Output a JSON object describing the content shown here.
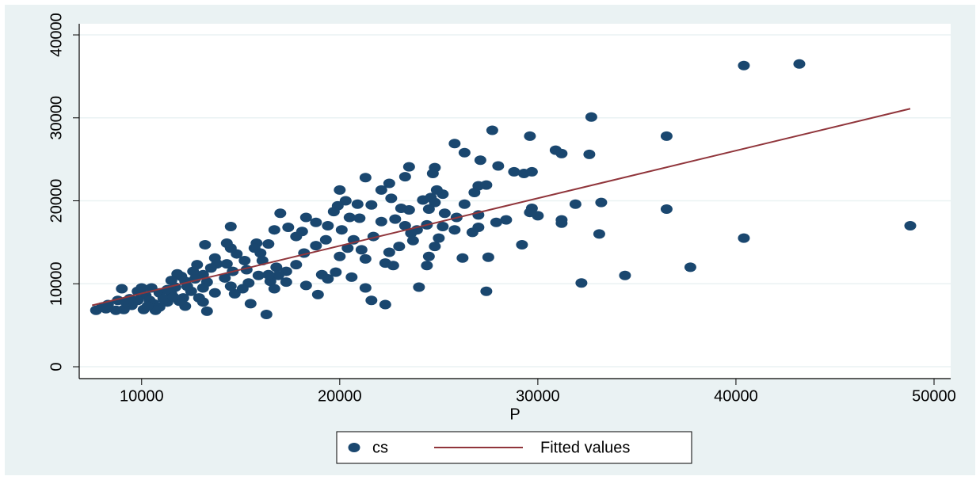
{
  "chart_data": {
    "type": "scatter",
    "x_label": "P",
    "xlim": [
      6850,
      50840
    ],
    "ylim": [
      -1430,
      41340
    ],
    "xticks": [
      10000,
      20000,
      30000,
      40000,
      50000
    ],
    "yticks": [
      0,
      10000,
      20000,
      30000,
      40000
    ],
    "grid": true,
    "legend": "bottom",
    "series": [
      {
        "name": "cs",
        "type": "scatter",
        "color": "#1a476f",
        "x": [
          40400,
          43200,
          32700,
          27700,
          29600,
          36500,
          25800,
          26300,
          27100,
          28000,
          30900,
          31200,
          32600,
          28800,
          29300,
          29700,
          23500,
          24800,
          24700,
          21300,
          22500,
          23300,
          48800,
          40400,
          36500,
          37700,
          34400,
          32200,
          33200,
          31900,
          31200,
          31200,
          30000,
          29600,
          29700,
          28400,
          27900,
          33100,
          29200,
          27500,
          26200,
          27400,
          26800,
          27000,
          27400,
          26300,
          25200,
          25300,
          27000,
          27000,
          24200,
          24600,
          24900,
          24800,
          24500,
          23100,
          23500,
          22600,
          22100,
          21600,
          20900,
          20300,
          20000,
          19900,
          19700,
          17000,
          18300,
          18800,
          19400,
          20100,
          21000,
          22100,
          22800,
          23300,
          23900,
          24400,
          25200,
          25800,
          26700,
          25000,
          24800,
          24500,
          24400,
          24000,
          23700,
          23000,
          22500,
          22300,
          22700,
          21300,
          21100,
          20700,
          20400,
          20000,
          19800,
          19100,
          19400,
          20600,
          21300,
          21600,
          22300,
          18900,
          18300,
          17800,
          18200,
          18800,
          19300,
          17800,
          17400,
          16700,
          16400,
          16000,
          16100,
          16800,
          17300,
          16900,
          16500,
          16700,
          17300,
          15900,
          15400,
          15100,
          15500,
          16300,
          14700,
          14500,
          14200,
          14600,
          14300,
          14800,
          14500,
          14300,
          14500,
          15800,
          15700,
          15200,
          13700,
          13200,
          13500,
          13100,
          13300,
          13100,
          13700,
          13100,
          13300,
          12900,
          12500,
          12200,
          12000,
          12600,
          12800,
          11800,
          11500,
          11700,
          11500,
          12100,
          11300,
          12200,
          10900,
          10500,
          10000,
          10200,
          9800,
          9500,
          9100,
          8700,
          8200,
          7700,
          8300,
          8800,
          9200,
          9000,
          9800,
          10400,
          10600,
          10900,
          11100,
          10100,
          10700,
          11300,
          11900,
          12300,
          13800,
          15300,
          16400,
          18100,
          20500,
          21700,
          23600,
          25900,
          8000,
          9400,
          10300,
          11600,
          12700
        ],
        "values": [
          36300,
          36500,
          30100,
          28500,
          27800,
          27800,
          26900,
          25800,
          24900,
          24200,
          26100,
          25700,
          25600,
          23500,
          23300,
          23500,
          24100,
          24000,
          23300,
          22800,
          22100,
          22900,
          17000,
          15500,
          19000,
          12000,
          11000,
          10100,
          19800,
          19600,
          17700,
          17300,
          18200,
          18600,
          19100,
          17700,
          17400,
          16000,
          14700,
          13200,
          13100,
          9100,
          21000,
          21800,
          21900,
          19600,
          20800,
          18500,
          18300,
          16800,
          20100,
          20400,
          21300,
          19800,
          19000,
          19100,
          18900,
          20300,
          21300,
          19500,
          19600,
          20000,
          21300,
          19400,
          18700,
          18500,
          18000,
          17400,
          17000,
          16500,
          17900,
          17500,
          17800,
          17000,
          16500,
          17100,
          16900,
          16500,
          16200,
          15500,
          14500,
          13300,
          12200,
          9600,
          15200,
          14500,
          13800,
          12500,
          12200,
          13000,
          14100,
          15300,
          14300,
          13300,
          11400,
          11100,
          10600,
          10800,
          9500,
          8000,
          7500,
          8700,
          9800,
          12300,
          13700,
          14600,
          15300,
          15700,
          16800,
          16500,
          14800,
          13700,
          12800,
          12000,
          11500,
          11000,
          10300,
          9400,
          10200,
          11000,
          10100,
          9400,
          7600,
          6300,
          8800,
          9700,
          10700,
          11500,
          12400,
          13600,
          14300,
          14900,
          16900,
          14900,
          14300,
          12800,
          13100,
          14700,
          11900,
          11100,
          10200,
          9500,
          8900,
          7800,
          6700,
          8300,
          9100,
          10300,
          10900,
          11500,
          12300,
          11200,
          10400,
          9600,
          8800,
          8300,
          7800,
          7300,
          8900,
          9500,
          9500,
          8600,
          8000,
          7400,
          6900,
          6800,
          7000,
          6800,
          7500,
          8000,
          7800,
          9400,
          9100,
          8000,
          7600,
          7200,
          8200,
          6900,
          6800,
          9300,
          7900,
          9700,
          12400,
          11700,
          11100,
          16300,
          18000,
          15700,
          16100,
          18000,
          7200,
          8200,
          7300,
          8400,
          10600
        ]
      },
      {
        "name": "Fitted values",
        "type": "line",
        "color": "#90353b",
        "x": [
          7500,
          48800
        ],
        "values": [
          7400,
          31100
        ]
      }
    ]
  }
}
